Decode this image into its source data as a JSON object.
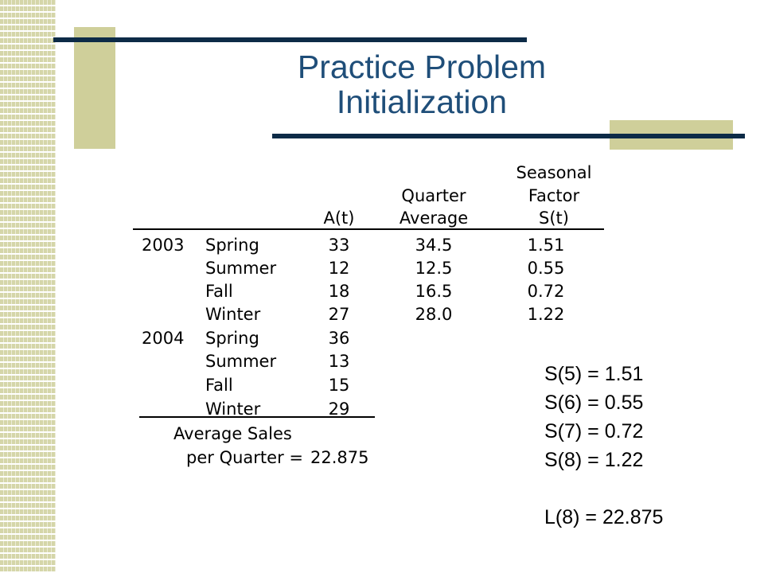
{
  "slide": {
    "title_line1": "Practice Problem",
    "title_line2": "Initialization"
  },
  "table": {
    "header": {
      "seasonal_line1": "Seasonal",
      "quarter_line1": "Quarter",
      "seasonal_line2": "Factor",
      "at": "A(t)",
      "quarter_line2": "Average",
      "seasonal_line3": "S(t)"
    },
    "rows": [
      {
        "year": "2003",
        "season": "Spring",
        "at": "33",
        "avg": "34.5",
        "st": "1.51"
      },
      {
        "year": "",
        "season": "Summer",
        "at": "12",
        "avg": "12.5",
        "st": "0.55"
      },
      {
        "year": "",
        "season": "Fall",
        "at": "18",
        "avg": "16.5",
        "st": "0.72"
      },
      {
        "year": "",
        "season": "Winter",
        "at": "27",
        "avg": "28.0",
        "st": "1.22"
      },
      {
        "year": "2004",
        "season": "Spring",
        "at": "36",
        "avg": "",
        "st": ""
      },
      {
        "year": "",
        "season": "Summer",
        "at": "13",
        "avg": "",
        "st": ""
      },
      {
        "year": "",
        "season": "Fall",
        "at": "15",
        "avg": "",
        "st": ""
      },
      {
        "year": "",
        "season": "Winter",
        "at": "29",
        "avg": "",
        "st": ""
      }
    ],
    "footer": {
      "line1": "Average Sales",
      "line2": "per Quarter =",
      "value": "22.875"
    }
  },
  "notes": {
    "s5": "S(5) = 1.51",
    "s6": "S(6) = 0.55",
    "s7": "S(7) = 0.72",
    "s8": "S(8) = 1.22",
    "l8": "L(8) = 22.875"
  }
}
